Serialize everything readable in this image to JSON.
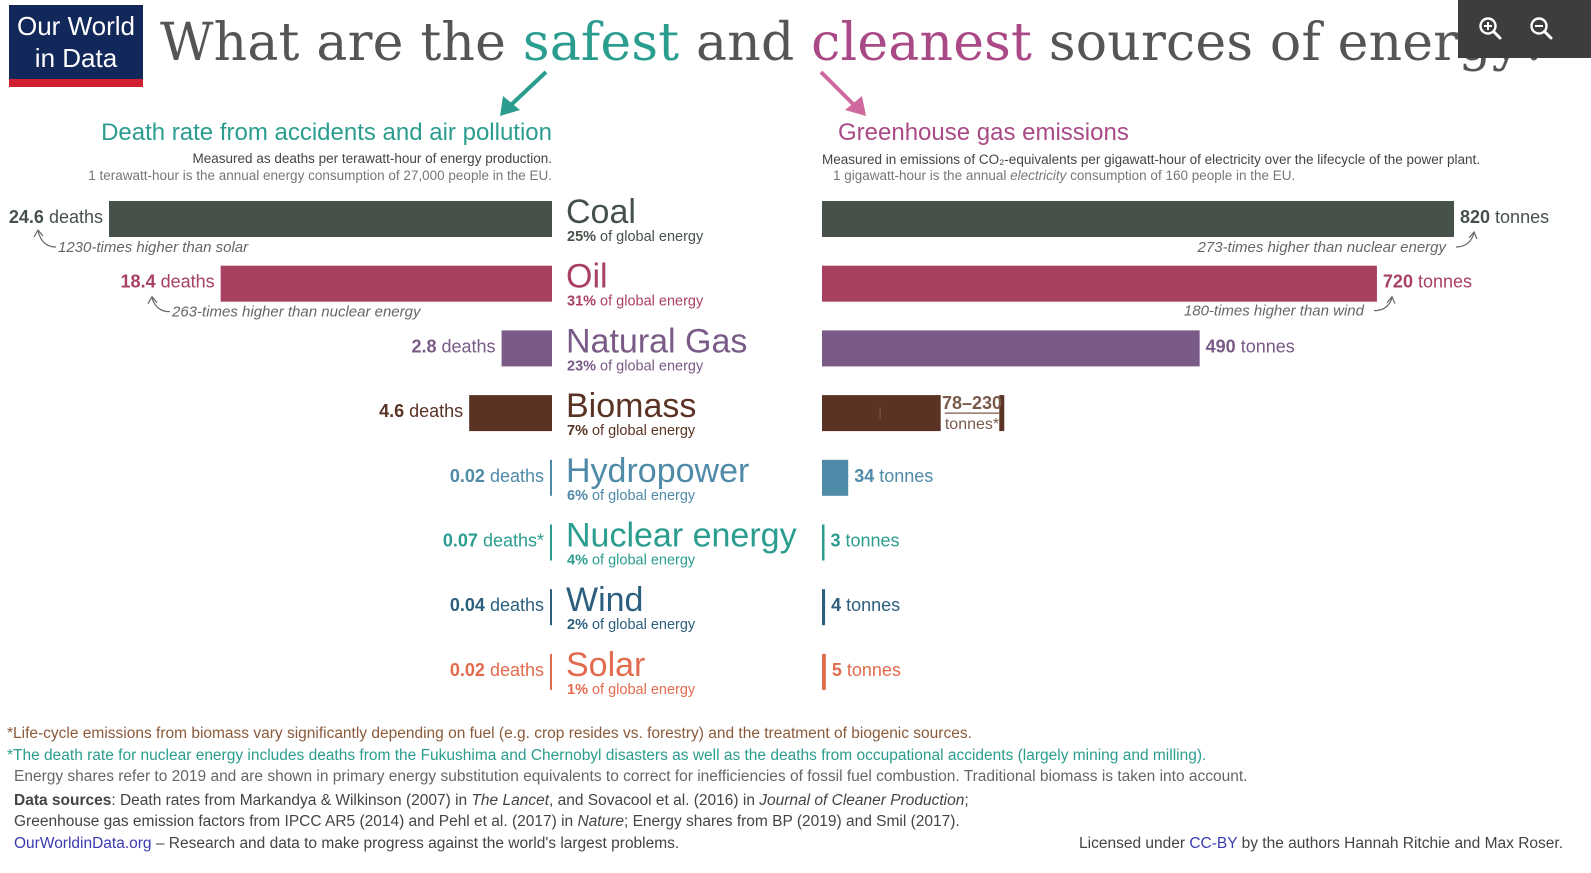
{
  "logo": {
    "line1": "Our World",
    "line2": "in Data"
  },
  "title": {
    "prefix": "What are the ",
    "word1": "safest",
    "middle": " and ",
    "word2": "cleanest",
    "suffix": " sources of energy?"
  },
  "colors": {
    "teal": "#2a9d8f",
    "magenta": "#a94a86",
    "coal": "#465249",
    "oil": "#a8405f",
    "gas": "#7a5a87",
    "biomass": "#5a3324",
    "hydro": "#4f8aa8",
    "nuclear": "#2a9d8f",
    "wind": "#2b5f7d",
    "solar": "#e26b4e"
  },
  "toolbar": {
    "zoom_in_icon": "zoom-in-icon",
    "zoom_out_icon": "zoom-out-icon"
  },
  "left_panel": {
    "title": "Death rate from accidents and air pollution",
    "subtitle": "Measured as deaths per terawatt-hour of energy production.",
    "note": "1 terawatt-hour is the annual energy consumption of 27,000 people in the EU."
  },
  "right_panel": {
    "title": "Greenhouse gas emissions",
    "subtitle": "Measured in emissions of CO₂-equivalents per gigawatt-hour of electricity over the lifecycle of the power plant.",
    "note_pre": "1 gigawatt-hour is the annual ",
    "note_em": "electricity",
    "note_post": " consumption of 160 people in the EU."
  },
  "chart_data": {
    "type": "bar",
    "categories": [
      "Coal",
      "Oil",
      "Natural Gas",
      "Biomass",
      "Hydropower",
      "Nuclear energy",
      "Wind",
      "Solar"
    ],
    "shares": [
      "25%",
      "31%",
      "23%",
      "7%",
      "6%",
      "4%",
      "2%",
      "1%"
    ],
    "share_suffix": " of global energy",
    "series": [
      {
        "values": [
          24.6,
          18.4,
          2.8,
          4.6,
          0.02,
          0.07,
          0.04,
          0.02
        ],
        "labels": [
          "24.6",
          "18.4",
          "2.8",
          "4.6",
          "0.02",
          "0.07",
          "0.04",
          "0.02"
        ],
        "unit": " deaths",
        "unit_nuclear": " deaths*"
      },
      {
        "values": [
          820,
          720,
          490,
          154,
          34,
          3,
          4,
          5
        ],
        "labels": [
          "820",
          "720",
          "490",
          "",
          "34",
          "3",
          "4",
          "5"
        ],
        "unit": " tonnes",
        "biomass_range": "78–230",
        "biomass_range_low": 78,
        "biomass_range_high": 230,
        "biomass_unit": "tonnes*"
      }
    ],
    "annotations": {
      "coal_deaths": "1230-times higher than solar",
      "oil_deaths": "263-times higher than nuclear energy",
      "coal_emissions": "273-times higher than nuclear energy",
      "oil_emissions": "180-times higher than wind"
    }
  },
  "footer": {
    "note1": "*Life-cycle emissions from biomass vary significantly depending on fuel (e.g. crop resides vs. forestry) and the treatment of biogenic sources.",
    "note2": "*The death rate for nuclear energy includes deaths from the Fukushima and Chernobyl disasters as well as the deaths from occupational accidents (largely mining and milling).",
    "note3": "Energy shares refer to 2019 and are shown in primary energy substitution equivalents to correct for inefficiencies of fossil fuel combustion. Traditional biomass is taken into account.",
    "sources_label": "Data sources",
    "sources_a": ": Death rates from Markandya & Wilkinson (2007) in ",
    "sources_a_em": "The Lancet",
    "sources_b": ", and Sovacool et al. (2016) in ",
    "sources_b_em": "Journal of Cleaner Production",
    "sources_c": ";",
    "sources2_a": "Greenhouse gas emission factors from IPCC AR5 (2014) and Pehl et al. (2017) in ",
    "sources2_em": "Nature",
    "sources2_b": "; Energy shares from BP (2019) and Smil (2017).",
    "site": "OurWorldinData.org",
    "site_tail": " – Research and data to make progress against the world's largest problems.",
    "license_pre": "Licensed under ",
    "license_link": "CC-BY",
    "license_post": " by the authors Hannah Ritchie and Max Roser."
  }
}
